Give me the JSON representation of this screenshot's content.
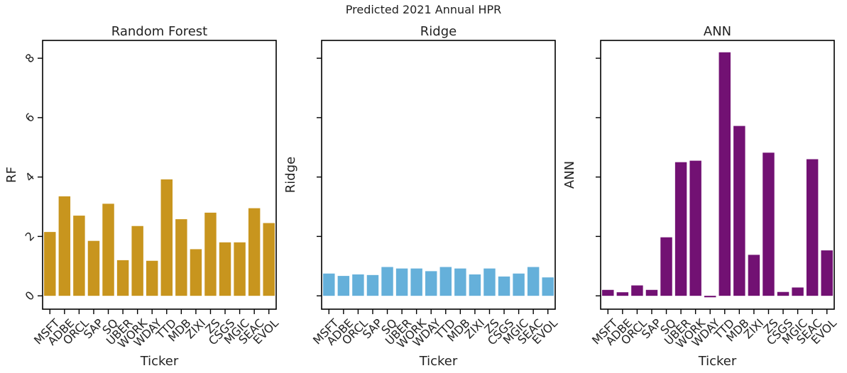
{
  "suptitle": "Predicted 2021 Annual HPR",
  "chart_data": [
    {
      "type": "bar",
      "title": "Random Forest",
      "xlabel": "Ticker",
      "ylabel": "RF",
      "ylim": [
        -0.45,
        8.6
      ],
      "yticks": [
        0,
        2,
        4,
        6,
        8
      ],
      "color": "#C8951E",
      "categories": [
        "MSFT",
        "ADBE",
        "ORCL",
        "SAP",
        "SQ",
        "UBER",
        "WORK",
        "WDAY",
        "TTD",
        "MDB",
        "ZIXI",
        "ZS",
        "CSGS",
        "MGIC",
        "SEAC",
        "EVOL"
      ],
      "values": [
        2.15,
        3.35,
        2.7,
        1.85,
        3.1,
        1.2,
        2.35,
        1.18,
        3.92,
        2.58,
        1.57,
        2.8,
        1.8,
        1.8,
        2.95,
        2.45
      ]
    },
    {
      "type": "bar",
      "title": "Ridge",
      "xlabel": "Ticker",
      "ylabel": "Ridge",
      "ylim": [
        -0.45,
        8.6
      ],
      "yticks": [
        0,
        2,
        4,
        6,
        8
      ],
      "color": "#65B0DA",
      "categories": [
        "MSFT",
        "ADBE",
        "ORCL",
        "SAP",
        "SQ",
        "UBER",
        "WORK",
        "WDAY",
        "TTD",
        "MDB",
        "ZIXI",
        "ZS",
        "CSGS",
        "MGIC",
        "SEAC",
        "EVOL"
      ],
      "values": [
        0.75,
        0.67,
        0.72,
        0.7,
        0.97,
        0.92,
        0.92,
        0.83,
        0.97,
        0.92,
        0.72,
        0.92,
        0.65,
        0.75,
        0.97,
        0.62
      ]
    },
    {
      "type": "bar",
      "title": "ANN",
      "xlabel": "Ticker",
      "ylabel": "ANN",
      "ylim": [
        -0.45,
        8.6
      ],
      "yticks": [
        0,
        2,
        4,
        6,
        8
      ],
      "color": "#721173",
      "categories": [
        "MSFT",
        "ADBE",
        "ORCL",
        "SAP",
        "SQ",
        "UBER",
        "WORK",
        "WDAY",
        "TTD",
        "MDB",
        "ZIXI",
        "ZS",
        "CSGS",
        "MGIC",
        "SEAC",
        "EVOL"
      ],
      "values": [
        0.2,
        0.12,
        0.35,
        0.2,
        1.97,
        4.5,
        4.55,
        -0.05,
        8.2,
        5.72,
        1.38,
        4.82,
        0.13,
        0.28,
        4.6,
        1.53
      ]
    }
  ]
}
